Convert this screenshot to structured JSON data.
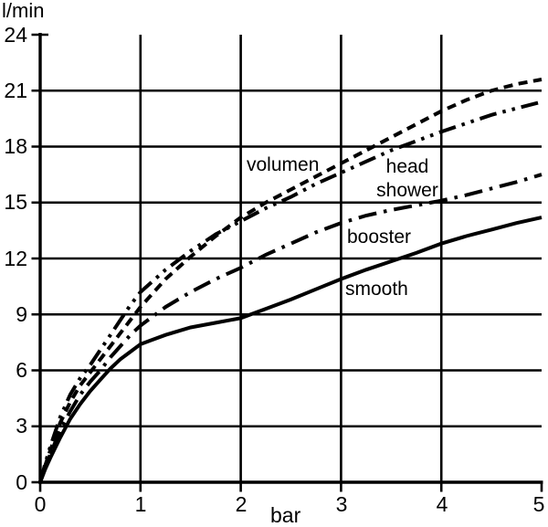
{
  "chart_data": {
    "type": "line",
    "title": "",
    "xlabel": "bar",
    "ylabel": "l/min",
    "xlim": [
      0,
      5
    ],
    "ylim": [
      0,
      24
    ],
    "x_ticks": [
      "0",
      "1",
      "2",
      "3",
      "4",
      "5"
    ],
    "y_ticks": [
      "24",
      "21",
      "18",
      "15",
      "12",
      "9",
      "6",
      "3",
      "0"
    ],
    "grid": true,
    "legend_position": "inline-labels",
    "ink_color": "#000000",
    "background_color": "#ffffff",
    "series": [
      {
        "name": "volumen",
        "label": "volumen",
        "style": "dashed",
        "points": [
          [
            0,
            0
          ],
          [
            0.05,
            0.9
          ],
          [
            0.1,
            1.7
          ],
          [
            0.2,
            3.2
          ],
          [
            0.3,
            4.3
          ],
          [
            0.4,
            5.2
          ],
          [
            0.5,
            5.9
          ],
          [
            0.6,
            6.6
          ],
          [
            0.7,
            7.3
          ],
          [
            0.8,
            8.0
          ],
          [
            0.9,
            8.7
          ],
          [
            1,
            9.4
          ],
          [
            1.25,
            10.9
          ],
          [
            1.5,
            12.1
          ],
          [
            1.75,
            13.2
          ],
          [
            2,
            14.2
          ],
          [
            2.25,
            15.0
          ],
          [
            2.5,
            15.7
          ],
          [
            2.75,
            16.4
          ],
          [
            3,
            17.1
          ],
          [
            3.25,
            17.8
          ],
          [
            3.5,
            18.5
          ],
          [
            3.75,
            19.2
          ],
          [
            4,
            19.9
          ],
          [
            4.25,
            20.5
          ],
          [
            4.5,
            21.0
          ],
          [
            4.75,
            21.35
          ],
          [
            5,
            21.6
          ]
        ]
      },
      {
        "name": "head shower",
        "label": "head shower",
        "style": "dash-dot-dot",
        "points": [
          [
            0,
            0
          ],
          [
            0.05,
            1.0
          ],
          [
            0.1,
            1.9
          ],
          [
            0.2,
            3.5
          ],
          [
            0.3,
            4.7
          ],
          [
            0.4,
            5.6
          ],
          [
            0.5,
            6.3
          ],
          [
            0.6,
            7.1
          ],
          [
            0.7,
            7.9
          ],
          [
            0.8,
            8.7
          ],
          [
            0.9,
            9.5
          ],
          [
            1,
            10.2
          ],
          [
            1.25,
            11.4
          ],
          [
            1.5,
            12.4
          ],
          [
            1.75,
            13.3
          ],
          [
            2,
            14.0
          ],
          [
            2.25,
            14.7
          ],
          [
            2.5,
            15.3
          ],
          [
            2.75,
            16.0
          ],
          [
            3,
            16.6
          ],
          [
            3.25,
            17.2
          ],
          [
            3.5,
            17.8
          ],
          [
            3.75,
            18.3
          ],
          [
            4,
            18.8
          ],
          [
            4.25,
            19.25
          ],
          [
            4.5,
            19.7
          ],
          [
            4.75,
            20.05
          ],
          [
            5,
            20.4
          ]
        ]
      },
      {
        "name": "booster",
        "label": "booster",
        "style": "dash-dot",
        "points": [
          [
            0,
            0
          ],
          [
            0.05,
            0.8
          ],
          [
            0.1,
            1.5
          ],
          [
            0.2,
            2.8
          ],
          [
            0.3,
            3.8
          ],
          [
            0.4,
            4.7
          ],
          [
            0.5,
            5.4
          ],
          [
            0.6,
            6.0
          ],
          [
            0.7,
            6.7
          ],
          [
            0.8,
            7.3
          ],
          [
            0.9,
            7.9
          ],
          [
            1,
            8.4
          ],
          [
            1.25,
            9.4
          ],
          [
            1.5,
            10.2
          ],
          [
            1.75,
            10.9
          ],
          [
            2,
            11.5
          ],
          [
            2.25,
            12.2
          ],
          [
            2.5,
            12.8
          ],
          [
            2.75,
            13.4
          ],
          [
            3,
            13.9
          ],
          [
            3.25,
            14.3
          ],
          [
            3.5,
            14.6
          ],
          [
            3.75,
            14.85
          ],
          [
            4,
            15.1
          ],
          [
            4.25,
            15.4
          ],
          [
            4.5,
            15.75
          ],
          [
            4.75,
            16.1
          ],
          [
            5,
            16.5
          ]
        ]
      },
      {
        "name": "smooth",
        "label": "smooth",
        "style": "solid",
        "points": [
          [
            0,
            0
          ],
          [
            0.05,
            0.7
          ],
          [
            0.1,
            1.3
          ],
          [
            0.2,
            2.4
          ],
          [
            0.3,
            3.4
          ],
          [
            0.4,
            4.2
          ],
          [
            0.5,
            4.9
          ],
          [
            0.6,
            5.5
          ],
          [
            0.7,
            6.1
          ],
          [
            0.8,
            6.6
          ],
          [
            0.9,
            7.0
          ],
          [
            1,
            7.4
          ],
          [
            1.1,
            7.6
          ],
          [
            1.25,
            7.9
          ],
          [
            1.5,
            8.3
          ],
          [
            1.75,
            8.55
          ],
          [
            2,
            8.8
          ],
          [
            2.25,
            9.3
          ],
          [
            2.5,
            9.8
          ],
          [
            2.75,
            10.35
          ],
          [
            3,
            10.9
          ],
          [
            3.25,
            11.4
          ],
          [
            3.5,
            11.85
          ],
          [
            3.75,
            12.3
          ],
          [
            4,
            12.8
          ],
          [
            4.25,
            13.2
          ],
          [
            4.5,
            13.55
          ],
          [
            4.75,
            13.9
          ],
          [
            5,
            14.2
          ]
        ]
      }
    ]
  }
}
